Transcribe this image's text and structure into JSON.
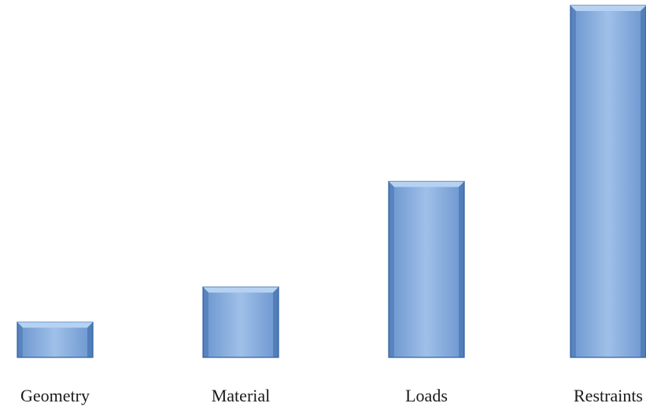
{
  "chart_data": {
    "type": "bar",
    "title": "",
    "xlabel": "",
    "ylabel": "",
    "categories": [
      "Geometry",
      "Material",
      "Loads",
      "Restraints"
    ],
    "values": [
      1,
      2,
      5,
      10
    ],
    "ylim": [
      0,
      10
    ],
    "grid": false,
    "legend": "none",
    "colors": {
      "bar_face": "#6b95cf",
      "bar_light": "#9fc0e8",
      "bar_edge": "#2f5f9e",
      "bar_bevel_top": "#b6d2f2"
    }
  }
}
